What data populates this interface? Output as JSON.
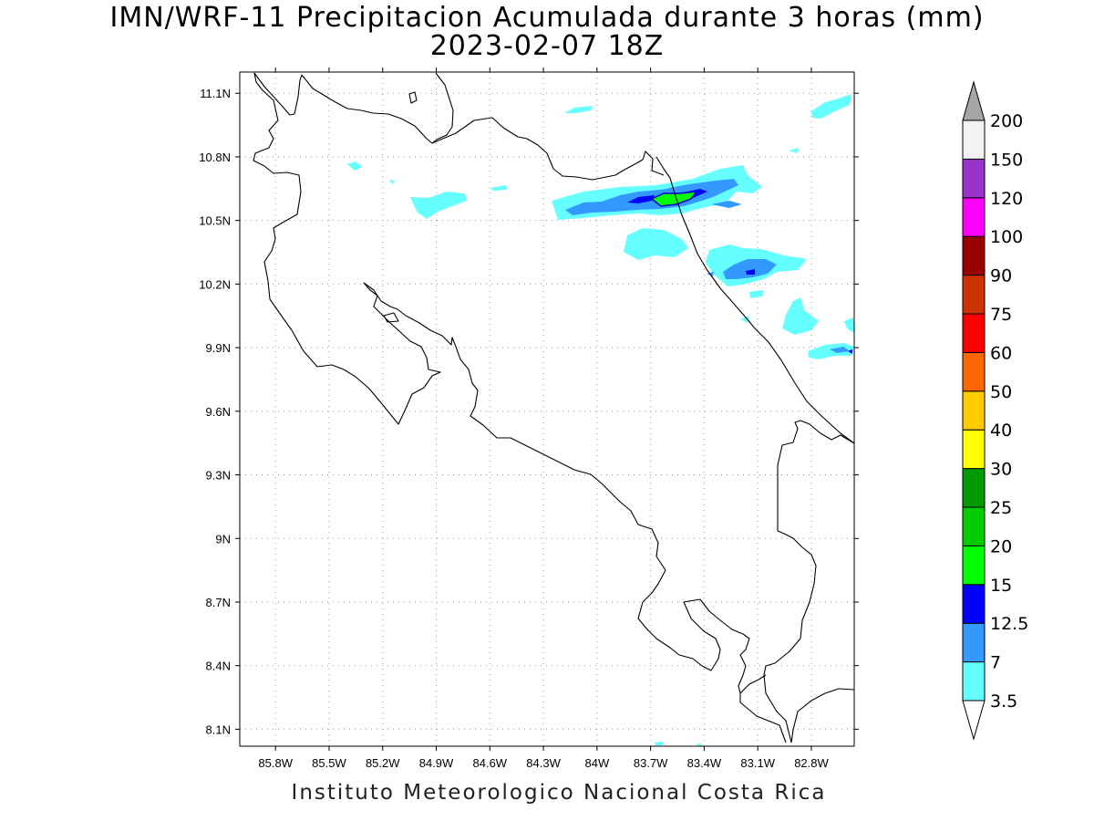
{
  "title": {
    "line1": "IMN/WRF-11 Precipitacion Acumulada durante 3 horas (mm)",
    "line2": "2023-02-07 18Z"
  },
  "footer": "Instituto Meteorologico Nacional Costa Rica",
  "map": {
    "lon_range": [
      -86.0,
      -82.56
    ],
    "lat_range": [
      8.02,
      11.2
    ],
    "lat_ticks": [
      {
        "value": 11.1,
        "label": "11.1N"
      },
      {
        "value": 10.8,
        "label": "10.8N"
      },
      {
        "value": 10.5,
        "label": "10.5N"
      },
      {
        "value": 10.2,
        "label": "10.2N"
      },
      {
        "value": 9.9,
        "label": "9.9N"
      },
      {
        "value": 9.6,
        "label": "9.6N"
      },
      {
        "value": 9.3,
        "label": "9.3N"
      },
      {
        "value": 9.0,
        "label": "9N"
      },
      {
        "value": 8.7,
        "label": "8.7N"
      },
      {
        "value": 8.4,
        "label": "8.4N"
      },
      {
        "value": 8.1,
        "label": "8.1N"
      }
    ],
    "lon_ticks": [
      {
        "value": -85.8,
        "label": "85.8W"
      },
      {
        "value": -85.5,
        "label": "85.5W"
      },
      {
        "value": -85.2,
        "label": "85.2W"
      },
      {
        "value": -84.9,
        "label": "84.9W"
      },
      {
        "value": -84.6,
        "label": "84.6W"
      },
      {
        "value": -84.3,
        "label": "84.3W"
      },
      {
        "value": -84.0,
        "label": "84W"
      },
      {
        "value": -83.7,
        "label": "83.7W"
      },
      {
        "value": -83.4,
        "label": "83.4W"
      },
      {
        "value": -83.1,
        "label": "83.1W"
      },
      {
        "value": -82.8,
        "label": "82.8W"
      }
    ],
    "grid": true
  },
  "colorbar": {
    "labels": [
      "3.5",
      "7",
      "12.5",
      "15",
      "20",
      "25",
      "30",
      "40",
      "50",
      "60",
      "75",
      "90",
      "100",
      "120",
      "150",
      "200"
    ],
    "colors": [
      "#66ffff",
      "#3399ff",
      "#0000ff",
      "#00ff00",
      "#00cc00",
      "#009900",
      "#ffff00",
      "#ffcc00",
      "#ff6600",
      "#ff0000",
      "#cc3300",
      "#990000",
      "#ff00ff",
      "#9933cc",
      "#f2f2f2"
    ],
    "over_color": "#a6a6a6",
    "under_color": "#ffffff"
  },
  "legend_colors": {
    "light_cyan": "#66ffff",
    "medium_blue": "#3399ff",
    "dark_blue": "#0000ff",
    "green": "#00ff00"
  }
}
